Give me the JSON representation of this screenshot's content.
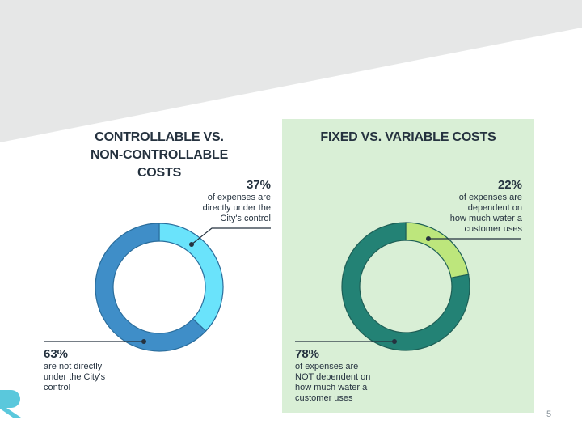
{
  "page_number": "5",
  "colors": {
    "controllable": "#6ae3fb",
    "non_controllable": "#3f8ec8",
    "variable": "#bde67c",
    "fixed": "#238275",
    "green_panel": "#d9efd6",
    "gray_band": "#e6e7e7",
    "logo": "#5ac8dc"
  },
  "icons": {
    "logo": "logo-r-mark"
  },
  "chart_data": [
    {
      "type": "donut",
      "title": "CONTROLLABLE VS.\nNON-CONTROLLABLE COSTS",
      "title_line1": "CONTROLLABLE VS.",
      "title_line2": "NON-CONTROLLABLE COSTS",
      "unit": "%",
      "slices": [
        {
          "label": "of expenses are\ndirectly under the\nCity's control",
          "value": 37,
          "display": "37%"
        },
        {
          "label": "are not directly\nunder the City's\ncontrol",
          "value": 63,
          "display": "63%"
        }
      ]
    },
    {
      "type": "donut",
      "title": "FIXED VS. VARIABLE COSTS",
      "unit": "%",
      "slices": [
        {
          "label": "of expenses are\ndependent on\nhow much water a\ncustomer uses",
          "value": 22,
          "display": "22%"
        },
        {
          "label": "of expenses are\nNOT dependent on\nhow much water a\ncustomer uses",
          "value": 78,
          "display": "78%"
        }
      ]
    }
  ]
}
